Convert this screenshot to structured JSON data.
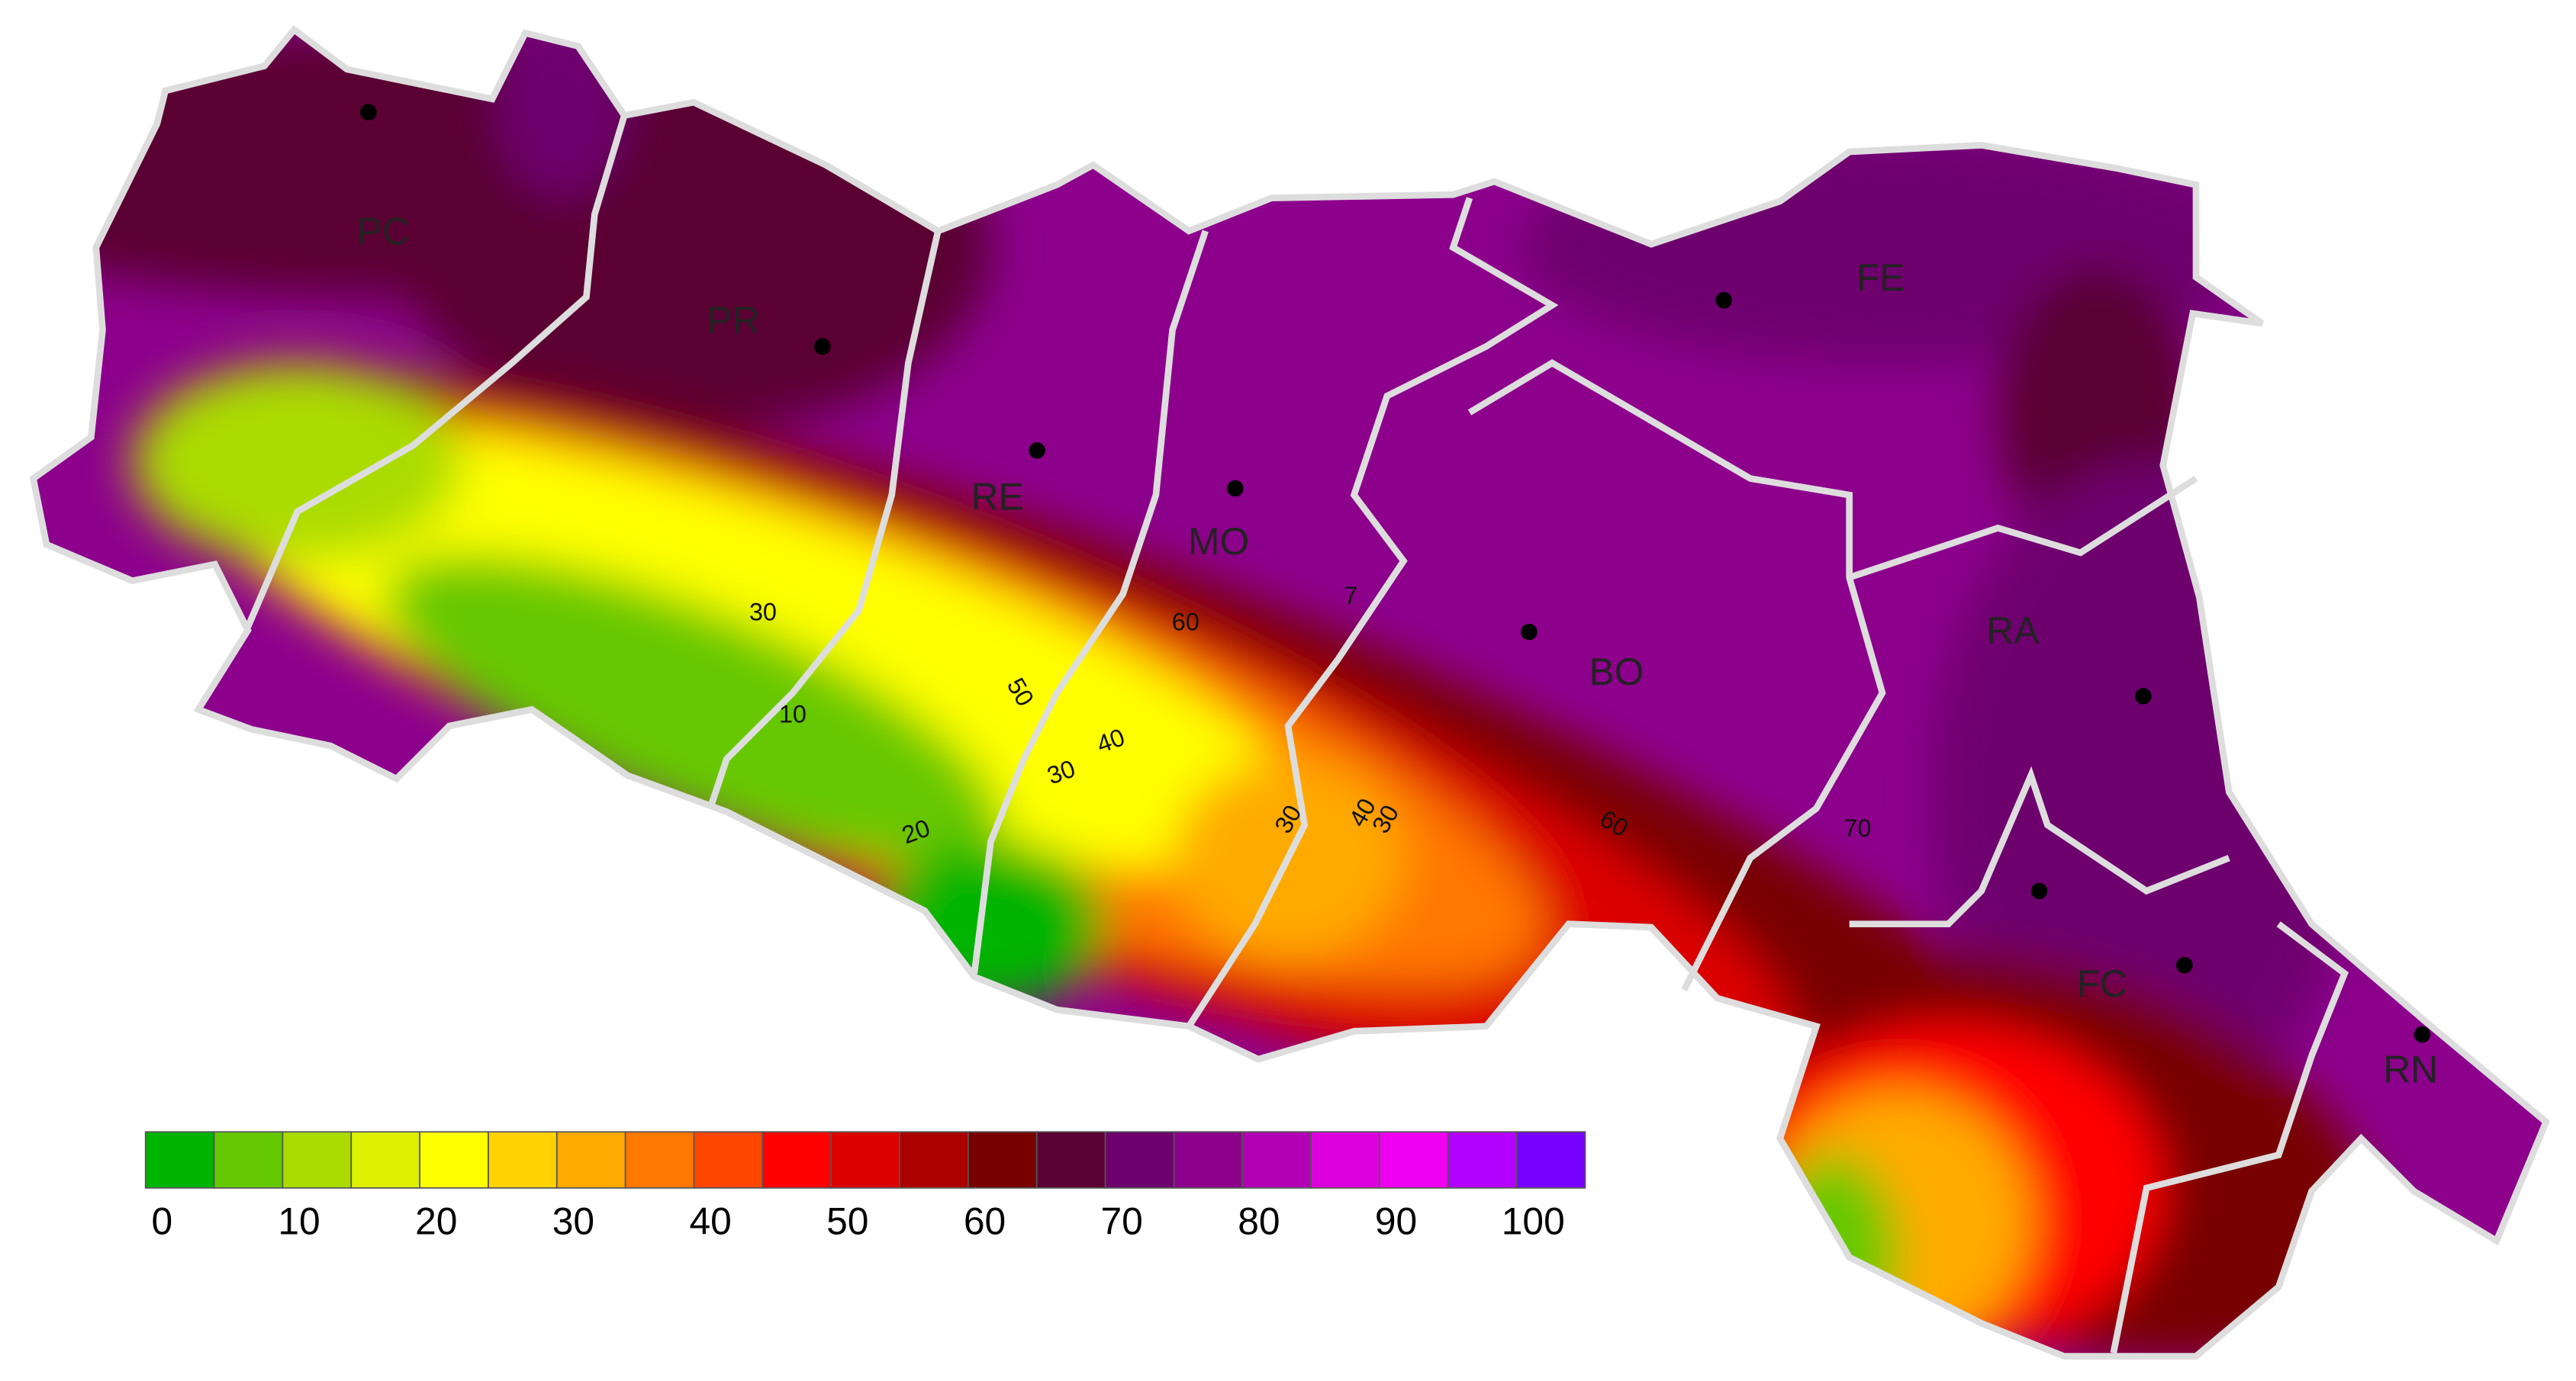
{
  "provinces": [
    "PC",
    "PR",
    "RE",
    "MO",
    "BO",
    "FE",
    "RA",
    "FC",
    "RN"
  ],
  "contour_labels": [
    "30",
    "10",
    "20",
    "50",
    "60",
    "40",
    "30",
    "30",
    "40",
    "30",
    "60",
    "70",
    "7"
  ],
  "colorbar": {
    "bins": [
      0,
      5,
      10,
      15,
      20,
      25,
      30,
      35,
      40,
      45,
      50,
      55,
      60,
      65,
      70,
      75,
      80,
      85,
      90,
      95,
      100,
      105
    ],
    "colors": [
      "#00b400",
      "#64c800",
      "#aadc00",
      "#dcf000",
      "#ffff00",
      "#ffd200",
      "#ffaa00",
      "#ff7800",
      "#ff4600",
      "#ff0000",
      "#dc0000",
      "#aa0000",
      "#780000",
      "#5a0032",
      "#6e006e",
      "#8c008c",
      "#b400b4",
      "#dc00dc",
      "#f000f0",
      "#b400ff",
      "#7800ff"
    ],
    "ticks": [
      0,
      10,
      20,
      30,
      40,
      50,
      60,
      70,
      80,
      90,
      100
    ]
  }
}
